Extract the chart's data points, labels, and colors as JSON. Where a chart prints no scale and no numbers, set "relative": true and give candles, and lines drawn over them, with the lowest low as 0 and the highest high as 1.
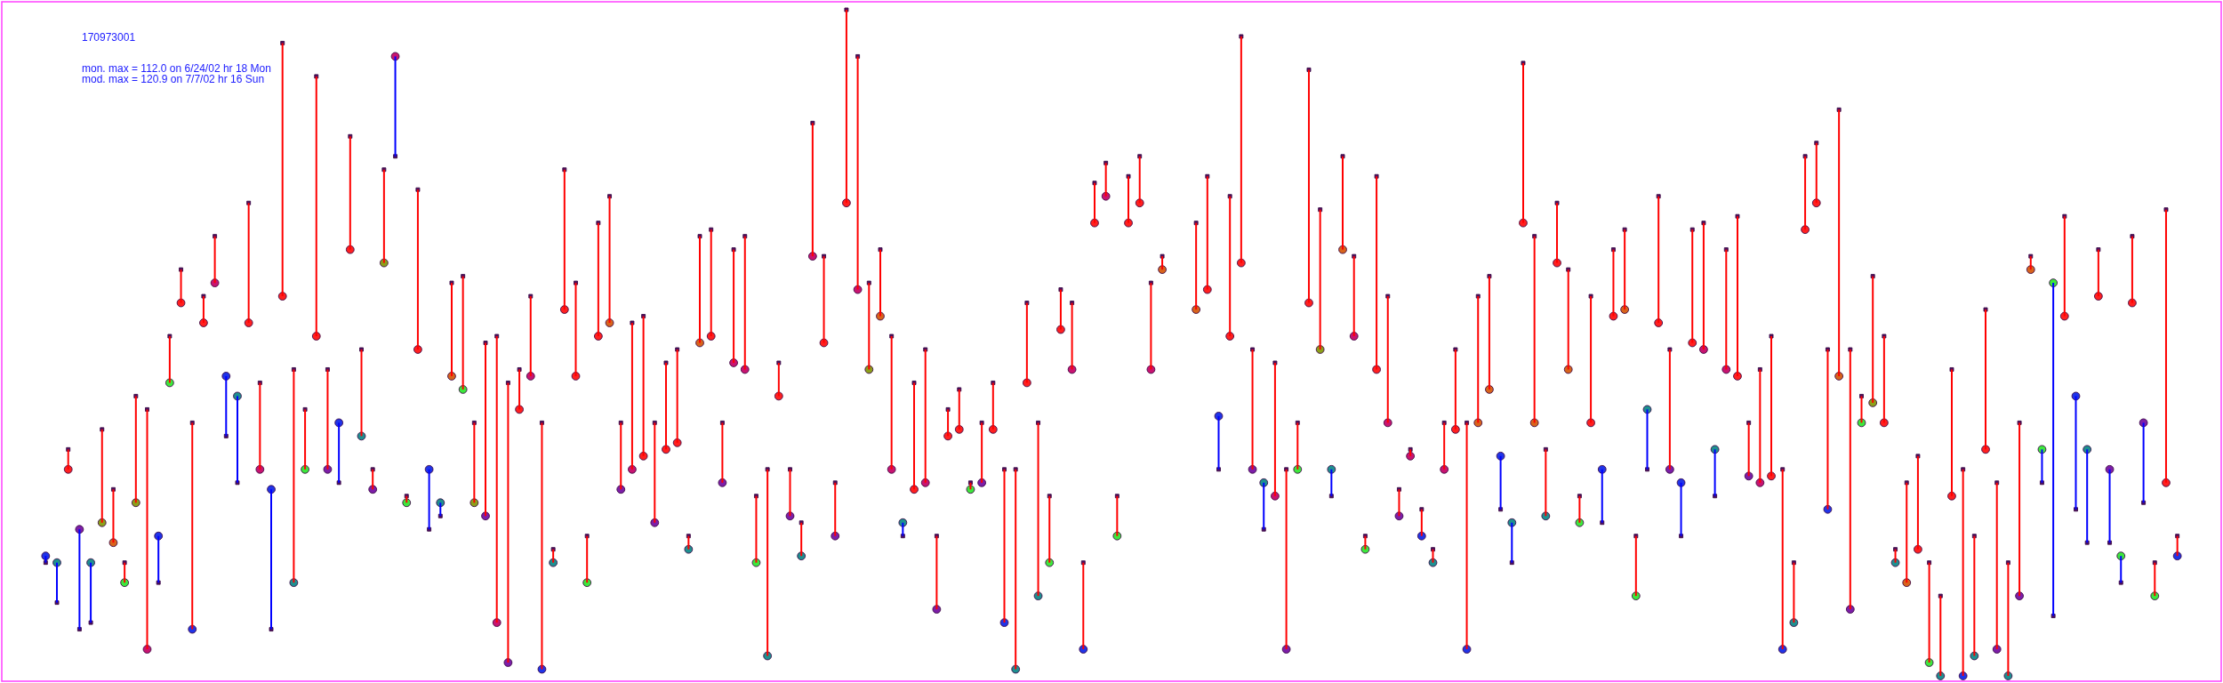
{
  "chart_data": {
    "type": "candlestick",
    "title": "170973001",
    "annotations": [
      "mon. max = 112.0 on 6/24/02 hr 18 Mon",
      "mod. max = 120.9 on 7/7/02 hr 16 Sun"
    ],
    "relative": true,
    "tick_labels": false,
    "categories": [
      null,
      null,
      null,
      null,
      null,
      null,
      null,
      null,
      null,
      null,
      null,
      null,
      null,
      null,
      null,
      null,
      null,
      null,
      null,
      null,
      null,
      null,
      null,
      null,
      null,
      null,
      null,
      null,
      null,
      null,
      null,
      null,
      null,
      null,
      null,
      null,
      null,
      null,
      null,
      null,
      null,
      null,
      null,
      null,
      null,
      null,
      null,
      null,
      null,
      null,
      null,
      null,
      null,
      null,
      null,
      null,
      null,
      null,
      null,
      null,
      null,
      null,
      null,
      null,
      null,
      null,
      null,
      null,
      null,
      null,
      null,
      null,
      null,
      null,
      null,
      null,
      null,
      null,
      null,
      null,
      null,
      null,
      null,
      null,
      null,
      null,
      null,
      null,
      null,
      null,
      null,
      null,
      null,
      null,
      null,
      null,
      null,
      null,
      null,
      null,
      null,
      null,
      null,
      null,
      null,
      null,
      null,
      null,
      null,
      null,
      null,
      null,
      null,
      null,
      null,
      null,
      null,
      null,
      null,
      null,
      null,
      null,
      null,
      null,
      null,
      null,
      null,
      null,
      null,
      null,
      null,
      null,
      null,
      null,
      null,
      null,
      null,
      null,
      null,
      null,
      null,
      null,
      null,
      null,
      null,
      null,
      null,
      null,
      null,
      null,
      null,
      null,
      null,
      null,
      null,
      null,
      null,
      null,
      null,
      null,
      null,
      null,
      null,
      null,
      null,
      null,
      null,
      null,
      null,
      null,
      null,
      null,
      null,
      null,
      null,
      null,
      null,
      null,
      null,
      null,
      null,
      null,
      null,
      null,
      null,
      null,
      null,
      null,
      null,
      null
    ],
    "ohlc": [
      [
        0.18,
        0.18,
        0.17,
        0.17
      ],
      [
        0.17,
        0.17,
        0.11,
        0.11
      ],
      [
        0.31,
        0.34,
        0.31,
        0.34
      ],
      [
        0.22,
        0.22,
        0.07,
        0.07
      ],
      [
        0.17,
        0.17,
        0.08,
        0.08
      ],
      [
        0.23,
        0.37,
        0.23,
        0.37
      ],
      [
        0.2,
        0.28,
        0.2,
        0.28
      ],
      [
        0.14,
        0.17,
        0.14,
        0.17
      ],
      [
        0.26,
        0.42,
        0.26,
        0.42
      ],
      [
        0.04,
        0.4,
        0.04,
        0.4
      ],
      [
        0.21,
        0.21,
        0.14,
        0.14
      ],
      [
        0.44,
        0.51,
        0.44,
        0.51
      ],
      [
        0.56,
        0.61,
        0.56,
        0.61
      ],
      [
        0.07,
        0.38,
        0.07,
        0.38
      ],
      [
        0.53,
        0.57,
        0.53,
        0.57
      ],
      [
        0.59,
        0.66,
        0.59,
        0.66
      ],
      [
        0.45,
        0.45,
        0.36,
        0.36
      ],
      [
        0.42,
        0.42,
        0.29,
        0.29
      ],
      [
        0.53,
        0.71,
        0.53,
        0.71
      ],
      [
        0.31,
        0.44,
        0.31,
        0.44
      ],
      [
        0.28,
        0.28,
        0.07,
        0.07
      ],
      [
        0.57,
        0.95,
        0.57,
        0.95
      ],
      [
        0.14,
        0.46,
        0.14,
        0.46
      ],
      [
        0.31,
        0.4,
        0.31,
        0.4
      ],
      [
        0.51,
        0.9,
        0.51,
        0.9
      ],
      [
        0.31,
        0.46,
        0.31,
        0.46
      ],
      [
        0.38,
        0.38,
        0.29,
        0.29
      ],
      [
        0.64,
        0.81,
        0.64,
        0.81
      ],
      [
        0.36,
        0.49,
        0.36,
        0.49
      ],
      [
        0.28,
        0.31,
        0.28,
        0.31
      ],
      [
        0.62,
        0.76,
        0.62,
        0.76
      ],
      [
        0.93,
        0.93,
        0.78,
        0.78
      ],
      [
        0.26,
        0.27,
        0.26,
        0.27
      ],
      [
        0.49,
        0.73,
        0.49,
        0.73
      ],
      [
        0.31,
        0.31,
        0.22,
        0.22
      ],
      [
        0.26,
        0.26,
        0.24,
        0.24
      ],
      [
        0.45,
        0.59,
        0.45,
        0.59
      ],
      [
        0.43,
        0.6,
        0.43,
        0.6
      ],
      [
        0.26,
        0.38,
        0.26,
        0.38
      ],
      [
        0.24,
        0.5,
        0.24,
        0.5
      ],
      [
        0.08,
        0.51,
        0.08,
        0.51
      ],
      [
        0.02,
        0.44,
        0.02,
        0.44
      ],
      [
        0.4,
        0.46,
        0.4,
        0.46
      ],
      [
        0.45,
        0.57,
        0.45,
        0.57
      ],
      [
        0.01,
        0.38,
        0.01,
        0.38
      ],
      [
        0.17,
        0.19,
        0.17,
        0.19
      ],
      [
        0.55,
        0.76,
        0.55,
        0.76
      ],
      [
        0.45,
        0.59,
        0.45,
        0.59
      ],
      [
        0.14,
        0.21,
        0.14,
        0.21
      ],
      [
        0.51,
        0.68,
        0.51,
        0.68
      ],
      [
        0.53,
        0.72,
        0.53,
        0.72
      ],
      [
        0.28,
        0.38,
        0.28,
        0.38
      ],
      [
        0.31,
        0.53,
        0.31,
        0.53
      ],
      [
        0.33,
        0.54,
        0.33,
        0.54
      ],
      [
        0.23,
        0.38,
        0.23,
        0.38
      ],
      [
        0.34,
        0.47,
        0.34,
        0.47
      ],
      [
        0.35,
        0.49,
        0.35,
        0.49
      ],
      [
        0.19,
        0.21,
        0.19,
        0.21
      ],
      [
        0.5,
        0.66,
        0.5,
        0.66
      ],
      [
        0.51,
        0.67,
        0.51,
        0.67
      ],
      [
        0.29,
        0.38,
        0.29,
        0.38
      ],
      [
        0.47,
        0.64,
        0.47,
        0.64
      ],
      [
        0.46,
        0.66,
        0.46,
        0.66
      ],
      [
        0.17,
        0.27,
        0.17,
        0.27
      ],
      [
        0.03,
        0.31,
        0.03,
        0.31
      ],
      [
        0.42,
        0.47,
        0.42,
        0.47
      ],
      [
        0.24,
        0.31,
        0.24,
        0.31
      ],
      [
        0.18,
        0.23,
        0.18,
        0.23
      ],
      [
        0.63,
        0.83,
        0.63,
        0.83
      ],
      [
        0.5,
        0.63,
        0.5,
        0.63
      ],
      [
        0.21,
        0.29,
        0.21,
        0.29
      ],
      [
        0.71,
        1.0,
        0.71,
        1.0
      ],
      [
        0.58,
        0.93,
        0.58,
        0.93
      ],
      [
        0.46,
        0.59,
        0.46,
        0.59
      ],
      [
        0.54,
        0.64,
        0.54,
        0.64
      ],
      [
        0.31,
        0.51,
        0.31,
        0.51
      ],
      [
        0.23,
        0.23,
        0.21,
        0.21
      ],
      [
        0.28,
        0.44,
        0.28,
        0.44
      ],
      [
        0.29,
        0.49,
        0.29,
        0.49
      ],
      [
        0.1,
        0.21,
        0.1,
        0.21
      ],
      [
        0.36,
        0.4,
        0.36,
        0.4
      ],
      [
        0.37,
        0.43,
        0.37,
        0.43
      ],
      [
        0.28,
        0.29,
        0.28,
        0.29
      ],
      [
        0.29,
        0.38,
        0.29,
        0.38
      ],
      [
        0.37,
        0.44,
        0.37,
        0.44
      ],
      [
        0.08,
        0.31,
        0.08,
        0.31
      ],
      [
        0.01,
        0.31,
        0.01,
        0.31
      ],
      [
        0.44,
        0.56,
        0.44,
        0.56
      ],
      [
        0.12,
        0.38,
        0.12,
        0.38
      ],
      [
        0.17,
        0.27,
        0.17,
        0.27
      ],
      [
        0.52,
        0.58,
        0.52,
        0.58
      ],
      [
        0.46,
        0.56,
        0.46,
        0.56
      ],
      [
        0.04,
        0.17,
        0.04,
        0.17
      ],
      [
        0.68,
        0.74,
        0.68,
        0.74
      ],
      [
        0.72,
        0.77,
        0.72,
        0.77
      ],
      [
        0.21,
        0.27,
        0.21,
        0.27
      ],
      [
        0.68,
        0.75,
        0.68,
        0.75
      ],
      [
        0.71,
        0.78,
        0.71,
        0.78
      ],
      [
        0.46,
        0.59,
        0.46,
        0.59
      ],
      [
        0.61,
        0.63,
        0.61,
        0.63
      ],
      null,
      null,
      [
        0.55,
        0.68,
        0.55,
        0.68
      ],
      [
        0.58,
        0.75,
        0.58,
        0.75
      ],
      [
        0.39,
        0.39,
        0.31,
        0.31
      ],
      [
        0.51,
        0.72,
        0.51,
        0.72
      ],
      [
        0.62,
        0.96,
        0.62,
        0.96
      ],
      [
        0.31,
        0.49,
        0.31,
        0.49
      ],
      [
        0.29,
        0.29,
        0.22,
        0.22
      ],
      [
        0.27,
        0.47,
        0.27,
        0.47
      ],
      [
        0.04,
        0.31,
        0.04,
        0.31
      ],
      [
        0.31,
        0.38,
        0.31,
        0.38
      ],
      [
        0.56,
        0.91,
        0.56,
        0.91
      ],
      [
        0.49,
        0.7,
        0.49,
        0.7
      ],
      [
        0.31,
        0.31,
        0.27,
        0.27
      ],
      [
        0.64,
        0.78,
        0.64,
        0.78
      ],
      [
        0.51,
        0.63,
        0.51,
        0.63
      ],
      [
        0.19,
        0.21,
        0.19,
        0.21
      ],
      [
        0.46,
        0.75,
        0.46,
        0.75
      ],
      [
        0.38,
        0.57,
        0.38,
        0.57
      ],
      [
        0.24,
        0.28,
        0.24,
        0.28
      ],
      [
        0.33,
        0.34,
        0.33,
        0.34
      ],
      [
        0.21,
        0.25,
        0.21,
        0.25
      ],
      [
        0.17,
        0.19,
        0.17,
        0.19
      ],
      [
        0.31,
        0.38,
        0.31,
        0.38
      ],
      [
        0.37,
        0.49,
        0.37,
        0.49
      ],
      [
        0.04,
        0.38,
        0.04,
        0.38
      ],
      [
        0.38,
        0.57,
        0.38,
        0.57
      ],
      [
        0.43,
        0.6,
        0.43,
        0.6
      ],
      [
        0.33,
        0.33,
        0.25,
        0.25
      ],
      [
        0.23,
        0.23,
        0.17,
        0.17
      ],
      [
        0.68,
        0.92,
        0.68,
        0.92
      ],
      [
        0.38,
        0.66,
        0.38,
        0.66
      ],
      [
        0.24,
        0.34,
        0.24,
        0.34
      ],
      [
        0.62,
        0.71,
        0.62,
        0.71
      ],
      [
        0.46,
        0.61,
        0.46,
        0.61
      ],
      [
        0.23,
        0.27,
        0.23,
        0.27
      ],
      [
        0.38,
        0.57,
        0.38,
        0.57
      ],
      [
        0.31,
        0.31,
        0.23,
        0.23
      ],
      [
        0.54,
        0.64,
        0.54,
        0.64
      ],
      [
        0.55,
        0.67,
        0.55,
        0.67
      ],
      [
        0.12,
        0.21,
        0.12,
        0.21
      ],
      [
        0.4,
        0.4,
        0.31,
        0.31
      ],
      [
        0.53,
        0.72,
        0.53,
        0.72
      ],
      [
        0.31,
        0.49,
        0.31,
        0.49
      ],
      [
        0.29,
        0.29,
        0.21,
        0.21
      ],
      [
        0.5,
        0.67,
        0.5,
        0.67
      ],
      [
        0.49,
        0.68,
        0.49,
        0.68
      ],
      [
        0.34,
        0.34,
        0.27,
        0.27
      ],
      [
        0.46,
        0.64,
        0.46,
        0.64
      ],
      [
        0.45,
        0.69,
        0.45,
        0.69
      ],
      [
        0.3,
        0.38,
        0.3,
        0.38
      ],
      [
        0.29,
        0.46,
        0.29,
        0.46
      ],
      [
        0.3,
        0.51,
        0.3,
        0.51
      ],
      [
        0.04,
        0.31,
        0.04,
        0.31
      ],
      [
        0.08,
        0.17,
        0.08,
        0.17
      ],
      [
        0.67,
        0.78,
        0.67,
        0.78
      ],
      [
        0.71,
        0.8,
        0.71,
        0.8
      ],
      [
        0.25,
        0.49,
        0.25,
        0.49
      ],
      [
        0.45,
        0.85,
        0.45,
        0.85
      ],
      [
        0.1,
        0.49,
        0.1,
        0.49
      ],
      [
        0.38,
        0.42,
        0.38,
        0.42
      ],
      [
        0.41,
        0.6,
        0.41,
        0.6
      ],
      [
        0.38,
        0.51,
        0.38,
        0.51
      ],
      [
        0.17,
        0.19,
        0.17,
        0.19
      ],
      [
        0.14,
        0.29,
        0.14,
        0.29
      ],
      [
        0.19,
        0.33,
        0.19,
        0.33
      ],
      [
        0.02,
        0.17,
        0.02,
        0.17
      ],
      [
        0,
        0.12,
        0,
        0.12
      ],
      [
        0.27,
        0.46,
        0.27,
        0.46
      ],
      [
        0,
        0.31,
        0,
        0.31
      ],
      [
        0.03,
        0.21,
        0.03,
        0.21
      ],
      [
        0.34,
        0.55,
        0.34,
        0.55
      ],
      [
        0.04,
        0.29,
        0.04,
        0.29
      ],
      [
        0,
        0.17,
        0,
        0.17
      ],
      [
        0.12,
        0.38,
        0.12,
        0.38
      ],
      [
        0.61,
        0.63,
        0.61,
        0.63
      ],
      [
        0.34,
        0.34,
        0.29,
        0.29
      ],
      [
        0.59,
        0.59,
        0.09,
        0.09
      ],
      [
        0.54,
        0.69,
        0.54,
        0.69
      ],
      [
        0.42,
        0.42,
        0.25,
        0.25
      ],
      [
        0.34,
        0.34,
        0.2,
        0.2
      ],
      [
        0.57,
        0.64,
        0.57,
        0.64
      ],
      [
        0.31,
        0.31,
        0.2,
        0.2
      ],
      [
        0.18,
        0.18,
        0.14,
        0.14
      ],
      [
        0.56,
        0.66,
        0.56,
        0.66
      ],
      [
        0.38,
        0.38,
        0.26,
        0.26
      ],
      [
        0.12,
        0.17,
        0.12,
        0.17
      ],
      [
        0.29,
        0.7,
        0.29,
        0.7
      ],
      [
        0.18,
        0.21,
        0.18,
        0.21
      ]
    ],
    "colors": [
      "#0000ff",
      "#0000ff",
      "#ff0000",
      "#0000ff",
      "#0000ff",
      "#ff0000",
      "#ff0000",
      "#ff0000",
      "#ff0000",
      "#ff0000",
      "#0000ff",
      "#ff0000",
      "#ff0000",
      "#ff0000",
      "#ff0000",
      "#ff0000",
      "#0000ff",
      "#0000ff",
      "#ff0000",
      "#ff0000",
      "#0000ff",
      "#ff0000",
      "#ff0000",
      "#ff0000",
      "#ff0000",
      "#ff0000",
      "#0000ff",
      "#ff0000",
      "#ff0000",
      "#ff0000",
      "#ff0000",
      "#0000ff",
      "#ff0000",
      "#ff0000",
      "#0000ff",
      "#0000ff",
      "#ff0000",
      "#ff0000",
      "#ff0000",
      "#ff0000",
      "#ff0000",
      "#ff0000",
      "#ff0000",
      "#ff0000",
      "#ff0000",
      "#ff0000",
      "#ff0000",
      "#ff0000",
      "#ff0000",
      "#ff0000",
      "#ff0000",
      "#ff0000",
      "#ff0000",
      "#ff0000",
      "#ff0000",
      "#ff0000",
      "#ff0000",
      "#ff0000",
      "#ff0000",
      "#ff0000",
      "#ff0000",
      "#ff0000",
      "#ff0000",
      "#ff0000",
      "#ff0000",
      "#ff0000",
      "#ff0000",
      "#ff0000",
      "#ff0000",
      "#ff0000",
      "#ff0000",
      "#ff0000",
      "#ff0000",
      "#ff0000",
      "#ff0000",
      "#ff0000",
      "#0000ff",
      "#ff0000",
      "#ff0000",
      "#ff0000",
      "#ff0000",
      "#ff0000",
      "#ff0000",
      "#ff0000",
      "#ff0000",
      "#ff0000",
      "#ff0000",
      "#ff0000",
      "#ff0000",
      "#ff0000",
      "#ff0000",
      "#ff0000",
      "#ff0000",
      "#ff0000",
      "#ff0000",
      "#ff0000",
      "#ff0000",
      "#ff0000",
      "#ff0000",
      "#ff0000",
      null,
      null,
      "#ff0000",
      "#ff0000",
      "#0000ff",
      "#ff0000",
      "#ff0000",
      "#ff0000",
      "#0000ff",
      "#ff0000",
      "#ff0000",
      "#ff0000",
      "#ff0000",
      "#ff0000",
      "#0000ff",
      "#ff0000",
      "#ff0000",
      "#ff0000",
      "#ff0000",
      "#ff0000",
      "#ff0000",
      "#ff0000",
      "#ff0000",
      "#ff0000",
      "#ff0000",
      "#ff0000",
      "#ff0000",
      "#ff0000",
      "#ff0000",
      "#0000ff",
      "#0000ff",
      "#ff0000",
      "#ff0000",
      "#ff0000",
      "#ff0000",
      "#ff0000",
      "#ff0000",
      "#ff0000",
      "#0000ff",
      "#ff0000",
      "#ff0000",
      "#ff0000",
      "#0000ff",
      "#ff0000",
      "#ff0000",
      "#0000ff",
      "#ff0000",
      "#ff0000",
      "#0000ff",
      "#ff0000",
      "#ff0000",
      "#ff0000",
      "#ff0000",
      "#ff0000",
      "#ff0000",
      "#ff0000",
      "#ff0000",
      "#ff0000",
      "#ff0000",
      "#ff0000",
      "#ff0000",
      "#ff0000",
      "#ff0000",
      "#ff0000",
      "#ff0000",
      "#ff0000",
      "#ff0000",
      "#ff0000",
      "#ff0000",
      "#ff0000",
      "#ff0000",
      "#ff0000",
      "#ff0000",
      "#ff0000",
      "#ff0000",
      "#ff0000",
      "#ff0000",
      "#0000ff",
      "#0000ff",
      "#ff0000",
      "#0000ff",
      "#0000ff",
      "#ff0000",
      "#0000ff",
      "#0000ff",
      "#ff0000",
      "#0000ff",
      "#ff0000",
      "#ff0000",
      "#ff0000"
    ],
    "series": [
      {
        "type": "scatter",
        "marker": "circle",
        "values": [
          0.18,
          0.17,
          0.31,
          0.22,
          0.17,
          0.23,
          0.2,
          0.14,
          0.26,
          0.04,
          0.21,
          0.44,
          0.56,
          0.07,
          0.53,
          0.59,
          0.45,
          0.42,
          0.53,
          0.31,
          0.28,
          0.57,
          0.14,
          0.31,
          0.51,
          0.31,
          0.38,
          0.64,
          0.36,
          0.28,
          0.62,
          0.93,
          0.26,
          0.49,
          0.31,
          0.26,
          0.45,
          0.43,
          0.26,
          0.24,
          0.08,
          0.02,
          0.4,
          0.45,
          0.01,
          0.17,
          0.55,
          0.45,
          0.14,
          0.51,
          0.53,
          0.28,
          0.31,
          0.33,
          0.23,
          0.34,
          0.35,
          0.19,
          0.5,
          0.51,
          0.29,
          0.47,
          0.46,
          0.17,
          0.03,
          0.42,
          0.24,
          0.18,
          0.63,
          0.5,
          0.21,
          0.71,
          0.58,
          0.46,
          0.54,
          0.31,
          0.23,
          0.28,
          0.29,
          0.1,
          0.36,
          0.37,
          0.28,
          0.29,
          0.37,
          0.08,
          0.01,
          0.44,
          0.12,
          0.17,
          0.52,
          0.46,
          0.04,
          0.68,
          0.72,
          0.21,
          0.68,
          0.71,
          0.46,
          0.61,
          null,
          null,
          0.55,
          0.58,
          0.39,
          0.51,
          0.62,
          0.31,
          0.29,
          0.27,
          0.04,
          0.31,
          0.56,
          0.49,
          0.31,
          0.64,
          0.51,
          0.19,
          0.46,
          0.38,
          0.24,
          0.33,
          0.21,
          0.17,
          0.31,
          0.37,
          0.04,
          0.38,
          0.43,
          0.33,
          0.23,
          0.68,
          0.38,
          0.24,
          0.62,
          0.46,
          0.23,
          0.38,
          0.31,
          0.54,
          0.55,
          0.12,
          0.4,
          0.53,
          0.31,
          0.29,
          0.5,
          0.49,
          0.34,
          0.46,
          0.45,
          0.3,
          0.29,
          0.3,
          0.04,
          0.08,
          0.67,
          0.71,
          0.25,
          0.45,
          0.1,
          0.38,
          0.41,
          0.38,
          0.17,
          0.14,
          0.19,
          0.02,
          0,
          0.27,
          0,
          0.03,
          0.34,
          0.04,
          0,
          0.12,
          0.61,
          0.34,
          0.59,
          0.54,
          0.42,
          0.34,
          0.57,
          0.31,
          0.18,
          0.56,
          0.38,
          0.12,
          0.29,
          0.18
        ],
        "colors": [
          "#2034e8",
          "#1e9090",
          "#ff2020",
          "#7c1ea8",
          "#1e9090",
          "#8ca01a",
          "#d8641c",
          "#3ce83c",
          "#8ca01a",
          "#c81470",
          "#2034e8",
          "#3ce83c",
          "#ff2020",
          "#2034e8",
          "#ff2020",
          "#c81470",
          "#2034e8",
          "#1e9090",
          "#ff2020",
          "#c81470",
          "#2034e8",
          "#ff2020",
          "#1e9090",
          "#3ce83c",
          "#ff2020",
          "#7c1ea8",
          "#2034e8",
          "#ff2020",
          "#1e9090",
          "#7c1ea8",
          "#8ca01a",
          "#c81470",
          "#3ce83c",
          "#ff2020",
          "#2034e8",
          "#1e9090",
          "#d8641c",
          "#3ce83c",
          "#8ca01a",
          "#7c1ea8",
          "#c81470",
          "#7c1ea8",
          "#ff2020",
          "#c81470",
          "#2034e8",
          "#1e9090",
          "#ff2020",
          "#ff2020",
          "#3ce83c",
          "#ff2020",
          "#d8641c",
          "#7c1ea8",
          "#c81470",
          "#ff2020",
          "#7c1ea8",
          "#ff2020",
          "#ff2020",
          "#1e9090",
          "#d8641c",
          "#ff2020",
          "#7c1ea8",
          "#c81470",
          "#c81470",
          "#3ce83c",
          "#1e9090",
          "#ff2020",
          "#7c1ea8",
          "#1e9090",
          "#c81470",
          "#ff2020",
          "#7c1ea8",
          "#ff2020",
          "#c81470",
          "#8ca01a",
          "#d8641c",
          "#c81470",
          "#1e9090",
          "#ff2020",
          "#c81470",
          "#7c1ea8",
          "#ff2020",
          "#ff2020",
          "#3ce83c",
          "#7c1ea8",
          "#ff2020",
          "#2034e8",
          "#1e9090",
          "#ff2020",
          "#1e9090",
          "#3ce83c",
          "#ff2020",
          "#c81470",
          "#2034e8",
          "#ff2020",
          "#c81470",
          "#3ce83c",
          "#ff2020",
          "#ff2020",
          "#c81470",
          "#d8641c",
          null,
          null,
          "#d8641c",
          "#ff2020",
          "#2034e8",
          "#ff2020",
          "#ff2020",
          "#7c1ea8",
          "#1e9090",
          "#c81470",
          "#7c1ea8",
          "#3ce83c",
          "#ff2020",
          "#8ca01a",
          "#1e9090",
          "#d8641c",
          "#c81470",
          "#3ce83c",
          "#ff2020",
          "#c81470",
          "#7c1ea8",
          "#c81470",
          "#2034e8",
          "#1e9090",
          "#c81470",
          "#ff2020",
          "#2034e8",
          "#d8641c",
          "#d8641c",
          "#2034e8",
          "#1e9090",
          "#ff2020",
          "#d8641c",
          "#1e9090",
          "#ff2020",
          "#d8641c",
          "#3ce83c",
          "#ff2020",
          "#2034e8",
          "#ff2020",
          "#d8641c",
          "#3ce83c",
          "#1e9090",
          "#ff2020",
          "#7c1ea8",
          "#2034e8",
          "#ff2020",
          "#c81470",
          "#1e9090",
          "#c81470",
          "#ff2020",
          "#7c1ea8",
          "#c81470",
          "#ff2020",
          "#2034e8",
          "#1e9090",
          "#ff2020",
          "#ff2020",
          "#2034e8",
          "#d8641c",
          "#7c1ea8",
          "#3ce83c",
          "#8ca01a",
          "#ff2020",
          "#1e9090",
          "#d8641c",
          "#ff2020",
          "#3ce83c",
          "#1e9090",
          "#ff2020",
          "#2034e8",
          "#1e9090",
          "#ff2020",
          "#7c1ea8",
          "#1e9090",
          "#7c1ea8",
          "#d8641c",
          "#3ce83c",
          "#3ce83c",
          "#ff2020",
          "#2034e8",
          "#1e9090",
          "#ff2020",
          "#7c1ea8",
          "#3ce83c",
          "#ff2020",
          "#7c1ea8",
          "#3ce83c",
          "#ff2020",
          "#2034e8"
        ]
      },
      {
        "type": "scatter",
        "marker": "square",
        "color": "#4b0f5f",
        "values": [
          0.17,
          0.11,
          0.34,
          0.07,
          0.08,
          0.37,
          0.28,
          0.17,
          0.42,
          0.4,
          0.14,
          0.51,
          0.61,
          0.38,
          0.57,
          0.66,
          0.36,
          0.29,
          0.71,
          0.44,
          0.07,
          0.95,
          0.46,
          0.4,
          0.9,
          0.46,
          0.29,
          0.81,
          0.49,
          0.31,
          0.76,
          0.78,
          0.27,
          0.73,
          0.22,
          0.24,
          0.59,
          0.6,
          0.38,
          0.5,
          0.51,
          0.44,
          0.46,
          0.57,
          0.38,
          0.19,
          0.76,
          0.59,
          0.21,
          0.68,
          0.72,
          0.38,
          0.53,
          0.54,
          0.38,
          0.47,
          0.49,
          0.21,
          0.66,
          0.67,
          0.38,
          0.64,
          0.66,
          0.27,
          0.31,
          0.47,
          0.31,
          0.23,
          0.83,
          0.63,
          0.29,
          1.0,
          0.93,
          0.59,
          0.64,
          0.51,
          0.21,
          0.44,
          0.49,
          0.21,
          0.4,
          0.43,
          0.29,
          0.38,
          0.44,
          0.31,
          0.31,
          0.56,
          0.38,
          0.27,
          0.58,
          0.56,
          0.17,
          0.74,
          0.77,
          0.27,
          0.75,
          0.78,
          0.59,
          0.63,
          null,
          null,
          0.68,
          0.75,
          0.31,
          0.72,
          0.96,
          0.49,
          0.22,
          0.47,
          0.31,
          0.38,
          0.91,
          0.7,
          0.27,
          0.78,
          0.63,
          0.21,
          0.75,
          0.57,
          0.28,
          0.34,
          0.25,
          0.19,
          0.38,
          0.49,
          0.38,
          0.57,
          0.6,
          0.25,
          0.17,
          0.92,
          0.66,
          0.34,
          0.71,
          0.61,
          0.27,
          0.57,
          0.23,
          0.64,
          0.67,
          0.21,
          0.31,
          0.72,
          0.49,
          0.21,
          0.67,
          0.68,
          0.27,
          0.64,
          0.69,
          0.38,
          0.46,
          0.51,
          0.31,
          0.17,
          0.78,
          0.8,
          0.49,
          0.85,
          0.49,
          0.42,
          0.6,
          0.51,
          0.19,
          0.29,
          0.33,
          0.17,
          0.12,
          0.46,
          0.31,
          0.21,
          0.55,
          0.29,
          0.17,
          0.38,
          0.63,
          0.29,
          0.09,
          0.69,
          0.25,
          0.2,
          0.64,
          0.2,
          0.14,
          0.66,
          0.26,
          0.17,
          0.7,
          0.21
        ]
      }
    ]
  }
}
